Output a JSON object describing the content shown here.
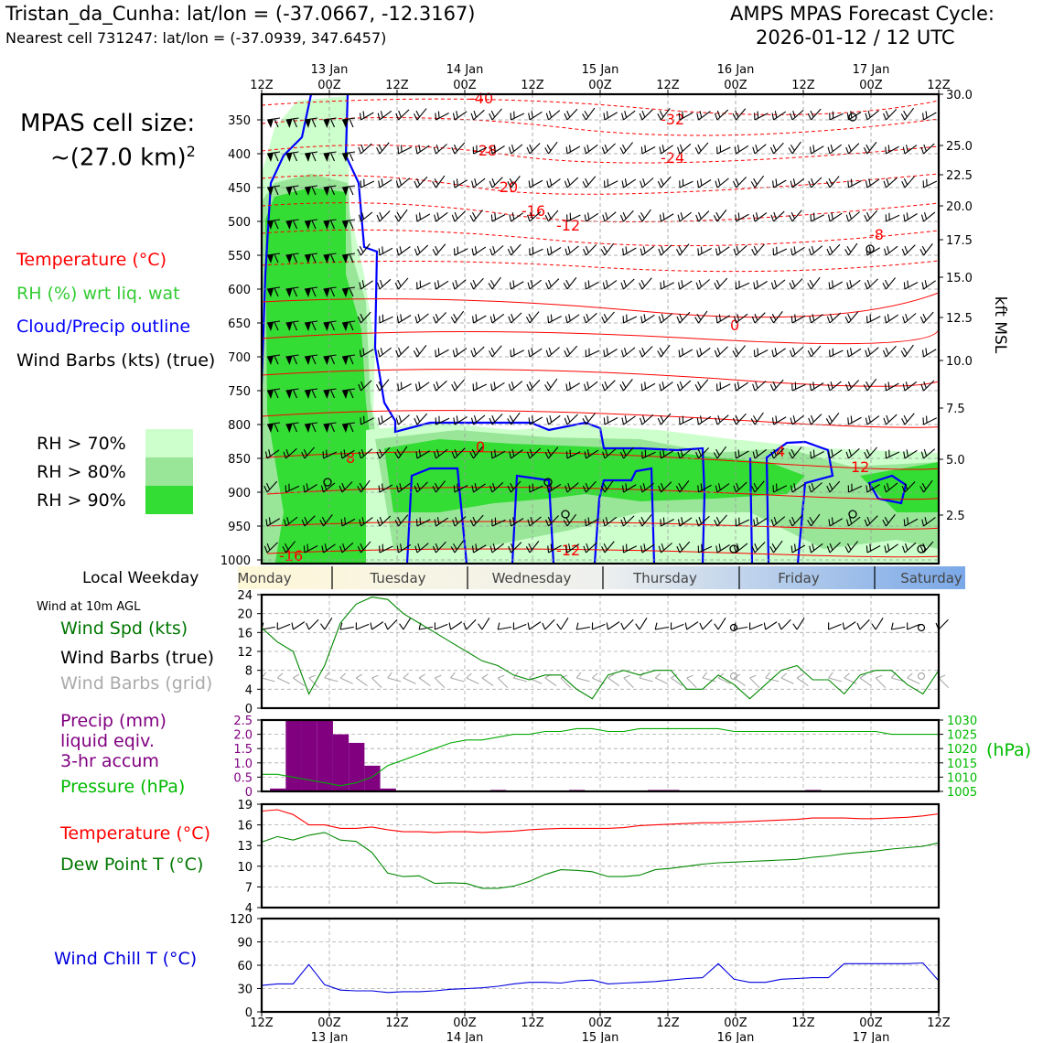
{
  "header": {
    "station": "Tristan_da_Cunha: lat/lon = (-37.0667, -12.3167)",
    "nearest_cell": "Nearest cell 731247: lat/lon = (-37.0939, 347.6457)",
    "forecast_title": "AMPS MPAS Forecast Cycle:",
    "forecast_cycle": "2026-01-12 / 12 UTC"
  },
  "cell_size": {
    "line1": "MPAS cell size:",
    "line2": "~(27.0 km)"
  },
  "legend_upper": {
    "temperature": "Temperature (°C)",
    "rh": "RH (%) wrt liq. wat",
    "cloud": "Cloud/Precip outline",
    "barbs": "Wind Barbs (kts) (true)",
    "rh70": "RH > 70%",
    "rh80": "RH > 80%",
    "rh90": "RH > 90%"
  },
  "weekday": {
    "label": "Local Weekday",
    "days": [
      "Monday",
      "Tuesday",
      "Wednesday",
      "Thursday",
      "Friday",
      "Saturday"
    ]
  },
  "legend_wind": {
    "title": "Wind at 10m AGL",
    "speed": "Wind Spd (kts)",
    "barbs_true": "Wind Barbs (true)",
    "barbs_grid": "Wind Barbs (grid)"
  },
  "legend_precip": {
    "l1": "Precip (mm)",
    "l2": "liquid eqiv.",
    "l3": "3-hr accum",
    "pressure": "Pressure (hPa)",
    "unit": "(hPa)"
  },
  "legend_temp": {
    "temp": "Temperature (°C)",
    "dew": "Dew Point T (°C)"
  },
  "legend_chill": {
    "label": "Wind Chill T (°C)"
  },
  "colors": {
    "temp": "#ff0000",
    "rh": "#22bb22",
    "cloud": "#0000ff",
    "dew": "#007700",
    "precip": "#800080",
    "pressure": "#00bb00",
    "chill": "#0000dd",
    "rh70": "#ccffcc",
    "rh80": "#99e699",
    "rh90": "#33dd33",
    "grid_barb": "#aaaaaa"
  },
  "chart_data": [
    {
      "type": "heatmap",
      "name": "cross-section",
      "x_ticks_top": [
        "12Z",
        "00Z",
        "12Z",
        "00Z",
        "12Z",
        "00Z",
        "12Z",
        "00Z",
        "12Z",
        "00Z",
        "12Z"
      ],
      "date_labels": [
        "13 Jan",
        "14 Jan",
        "15 Jan",
        "16 Jan",
        "17 Jan"
      ],
      "y_pressure_ticks": [
        "350",
        "400",
        "450",
        "500",
        "550",
        "600",
        "650",
        "700",
        "750",
        "800",
        "850",
        "900",
        "950",
        "1000"
      ],
      "y_right_ticks": [
        "30.0",
        "25.0",
        "22.5",
        "20.0",
        "17.5",
        "15.0",
        "12.5",
        "10.0",
        "7.5",
        "5.0",
        "2.5"
      ],
      "y_right_label": "kft MSL",
      "temp_labels": [
        "-40",
        "-32",
        "-28",
        "-24",
        "-20",
        "-16",
        "-12",
        "-8",
        "-4",
        "0",
        "-4",
        "4",
        "8",
        "4",
        "12",
        "8",
        "-12",
        "-16"
      ]
    },
    {
      "type": "line",
      "name": "wind-speed",
      "y_ticks": [
        "0",
        "4",
        "8",
        "12",
        "16",
        "20",
        "24"
      ],
      "ylim": [
        0,
        24
      ],
      "values": [
        17,
        14,
        12,
        3,
        9,
        18,
        22,
        23.5,
        23,
        20,
        18,
        16,
        14,
        12,
        10,
        9,
        7,
        6,
        7,
        7,
        4,
        2,
        7,
        8,
        7,
        8,
        8,
        4,
        4,
        7,
        5,
        2,
        5,
        8,
        9,
        6,
        6,
        3,
        7,
        8,
        8,
        5,
        3,
        8
      ]
    },
    {
      "type": "bar",
      "name": "precip-pressure",
      "y_ticks_left": [
        "0",
        "0.5",
        "1.0",
        "1.5",
        "2.0",
        "2.5"
      ],
      "ylim": [
        0,
        2.5
      ],
      "precip": [
        0,
        0.1,
        2.5,
        2.5,
        2.5,
        2.0,
        1.7,
        0.9,
        0.1,
        0,
        0,
        0,
        0,
        0,
        0,
        0.05,
        0,
        0,
        0,
        0,
        0.05,
        0,
        0,
        0,
        0,
        0.05,
        0.05,
        0,
        0,
        0,
        0,
        0,
        0,
        0,
        0,
        0.05,
        0,
        0,
        0,
        0,
        0,
        0,
        0,
        0
      ],
      "y_ticks_right": [
        "1005",
        "1010",
        "1015",
        "1020",
        "1025",
        "1030"
      ],
      "pressure_ylim": [
        1005,
        1030
      ],
      "pressure": [
        1011,
        1011,
        1010,
        1009,
        1008,
        1007,
        1008,
        1010,
        1014,
        1016,
        1018,
        1020,
        1022,
        1023,
        1023,
        1024,
        1025,
        1025,
        1026,
        1026,
        1027,
        1027,
        1026,
        1026,
        1027,
        1027,
        1027,
        1027,
        1027,
        1027,
        1026,
        1026,
        1026,
        1026,
        1026,
        1026,
        1026,
        1026,
        1026,
        1026,
        1025,
        1025,
        1025,
        1025
      ]
    },
    {
      "type": "line",
      "name": "temperature-dewpoint",
      "y_ticks": [
        "4",
        "7",
        "10",
        "13",
        "16",
        "19"
      ],
      "ylim": [
        4,
        19
      ],
      "series": [
        {
          "name": "Temperature (°C)",
          "values": [
            18,
            18.2,
            17.5,
            16,
            16,
            15.5,
            15.5,
            15.7,
            15.3,
            15,
            15,
            14.9,
            15,
            15,
            14.9,
            15,
            15.1,
            15.3,
            15.4,
            15.5,
            15.5,
            15.5,
            15.5,
            15.6,
            15.9,
            16,
            16.1,
            16.2,
            16.3,
            16.3,
            16.4,
            16.5,
            16.6,
            16.7,
            16.8,
            17,
            17,
            17,
            16.9,
            16.9,
            17,
            17.1,
            17.3,
            17.6
          ]
        },
        {
          "name": "Dew Point T (°C)",
          "values": [
            13.5,
            14.3,
            13.8,
            14.5,
            14.9,
            13.8,
            13.6,
            12,
            9,
            8.5,
            8.6,
            7.5,
            7.6,
            7.5,
            6.8,
            6.8,
            7.1,
            7.8,
            8.8,
            9.5,
            9.4,
            9.2,
            8.5,
            8.5,
            8.7,
            9.5,
            9.7,
            10,
            10.3,
            10.5,
            10.6,
            10.7,
            10.8,
            10.9,
            11,
            11.3,
            11.5,
            11.8,
            12,
            12.2,
            12.5,
            12.7,
            12.9,
            13.4
          ]
        }
      ]
    },
    {
      "type": "line",
      "name": "wind-chill",
      "y_ticks": [
        "0",
        "30",
        "60",
        "90",
        "120"
      ],
      "ylim": [
        0,
        120
      ],
      "values": [
        34,
        36,
        36,
        61,
        35,
        28,
        27,
        27,
        25,
        26,
        26,
        27,
        29,
        30,
        31,
        33,
        36,
        38,
        38,
        37,
        40,
        41,
        36,
        37,
        38,
        39,
        41,
        43,
        44,
        62,
        42,
        38,
        38,
        42,
        43,
        44,
        44,
        62,
        62,
        62,
        62,
        62,
        63,
        40
      ]
    }
  ],
  "x_bottom_ticks": [
    "12Z",
    "00Z",
    "12Z",
    "00Z",
    "12Z",
    "00Z",
    "12Z",
    "00Z",
    "12Z",
    "00Z",
    "12Z"
  ]
}
